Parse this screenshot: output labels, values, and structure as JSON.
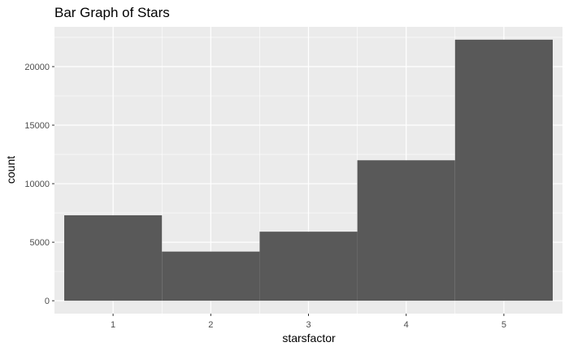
{
  "chart_data": {
    "type": "bar",
    "title": "Bar Graph of Stars",
    "xlabel": "starsfactor",
    "ylabel": "count",
    "categories": [
      "1",
      "2",
      "3",
      "4",
      "5"
    ],
    "values": [
      7300,
      4200,
      5900,
      12000,
      22300
    ],
    "ylim": [
      -1100,
      23400
    ],
    "yticks": [
      0,
      5000,
      10000,
      15000,
      20000
    ],
    "grid": true,
    "colors": {
      "panel": "#ebebeb",
      "grid_major": "#ffffff",
      "bar": "#595959",
      "tick": "#333333"
    }
  }
}
